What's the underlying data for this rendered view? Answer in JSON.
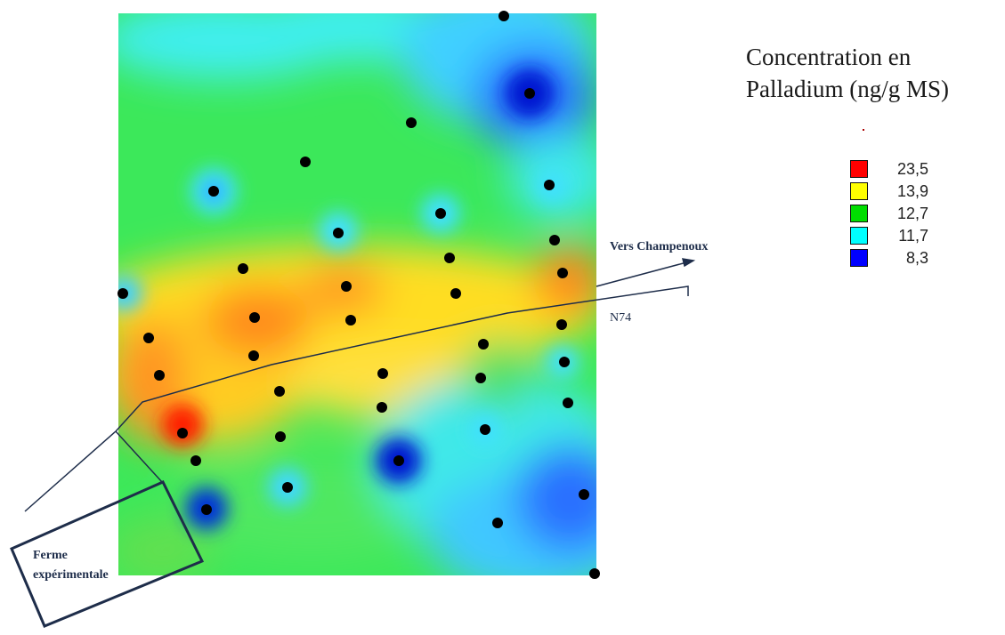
{
  "legend": {
    "title_line1": "Concentration en",
    "title_line2": "Palladium (ng/g MS)",
    "items": [
      {
        "value": "23,5",
        "color": "#ff0000"
      },
      {
        "value": "13,9",
        "color": "#ffff00"
      },
      {
        "value": "12,7",
        "color": "#00dd00"
      },
      {
        "value": "11,7",
        "color": "#00ffff"
      },
      {
        "value": "8,3",
        "color": "#0000ff"
      }
    ]
  },
  "labels": {
    "vers_champenoux": "Vers Champenoux",
    "n74": "N74",
    "ferme_line1": "Ferme",
    "ferme_line2": "expérimentale"
  },
  "colors": {
    "high": "#ff0000",
    "mid_high": "#ffdd00",
    "mid": "#00dd00",
    "low_mid": "#00ffff",
    "low": "#0000ff",
    "annotation_lines": "#1e2d4a",
    "sample_points": "#000000"
  }
}
